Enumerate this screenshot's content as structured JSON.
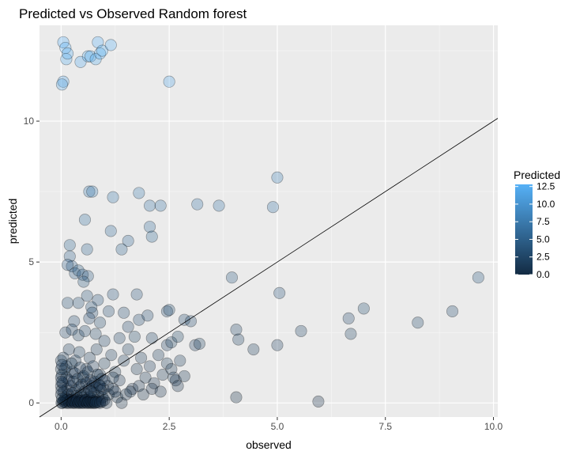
{
  "chart_data": {
    "type": "scatter",
    "title": "Predicted vs Observed Random forest",
    "xlabel": "observed",
    "ylabel": "predicted",
    "xlim": [
      -0.5,
      10.1
    ],
    "ylim": [
      -0.5,
      13.4
    ],
    "x_ticks": [
      0,
      2.5,
      5,
      7.5,
      10
    ],
    "x_tick_labels": [
      "0.0",
      "2.5",
      "5.0",
      "7.5",
      "10.0"
    ],
    "y_ticks": [
      0,
      5,
      10
    ],
    "y_tick_labels": [
      "0",
      "5",
      "10"
    ],
    "grid": true,
    "reference_line": {
      "slope": 1,
      "intercept": 0
    },
    "color_scale": {
      "title": "Predicted",
      "low": "#132B43",
      "high": "#56B1F7",
      "domain": [
        0,
        12.8
      ],
      "ticks": [
        0,
        2.5,
        5,
        7.5,
        10,
        12.5
      ],
      "tick_labels": [
        "0.0",
        "2.5",
        "5.0",
        "7.5",
        "10.0",
        "12.5"
      ]
    },
    "legend_placement": "right",
    "series": [
      {
        "points": [
          [
            0.05,
            12.8
          ],
          [
            0.1,
            12.6
          ],
          [
            0.12,
            12.2
          ],
          [
            0.15,
            12.4
          ],
          [
            0.05,
            11.4
          ],
          [
            0.02,
            11.3
          ],
          [
            0.45,
            12.1
          ],
          [
            0.62,
            12.3
          ],
          [
            0.68,
            12.3
          ],
          [
            0.8,
            12.2
          ],
          [
            0.85,
            12.8
          ],
          [
            0.9,
            12.4
          ],
          [
            0.95,
            12.5
          ],
          [
            1.15,
            12.7
          ],
          [
            2.5,
            11.4
          ],
          [
            0.65,
            7.5
          ],
          [
            0.72,
            7.5
          ],
          [
            1.2,
            7.3
          ],
          [
            1.8,
            7.45
          ],
          [
            2.05,
            7.0
          ],
          [
            2.3,
            7.0
          ],
          [
            3.15,
            7.05
          ],
          [
            3.65,
            7.0
          ],
          [
            4.9,
            6.95
          ],
          [
            5.0,
            8.0
          ],
          [
            0.55,
            6.5
          ],
          [
            1.15,
            6.1
          ],
          [
            2.05,
            6.25
          ],
          [
            2.1,
            5.9
          ],
          [
            1.55,
            5.75
          ],
          [
            1.4,
            5.45
          ],
          [
            0.2,
            5.6
          ],
          [
            0.6,
            5.45
          ],
          [
            0.2,
            5.2
          ],
          [
            0.25,
            4.85
          ],
          [
            0.15,
            4.9
          ],
          [
            0.32,
            4.6
          ],
          [
            0.4,
            4.7
          ],
          [
            0.5,
            4.55
          ],
          [
            0.62,
            4.5
          ],
          [
            0.52,
            4.3
          ],
          [
            3.95,
            4.45
          ],
          [
            9.65,
            4.45
          ],
          [
            0.6,
            3.8
          ],
          [
            0.85,
            3.65
          ],
          [
            1.2,
            3.85
          ],
          [
            1.75,
            3.85
          ],
          [
            0.15,
            3.55
          ],
          [
            0.4,
            3.55
          ],
          [
            0.7,
            3.4
          ],
          [
            0.72,
            3.2
          ],
          [
            1.1,
            3.25
          ],
          [
            1.45,
            3.2
          ],
          [
            2.45,
            3.25
          ],
          [
            2.5,
            3.3
          ],
          [
            5.05,
            3.9
          ],
          [
            7.0,
            3.35
          ],
          [
            9.05,
            3.25
          ],
          [
            0.3,
            2.9
          ],
          [
            0.65,
            3.0
          ],
          [
            0.9,
            2.85
          ],
          [
            1.55,
            2.7
          ],
          [
            1.8,
            2.95
          ],
          [
            2.0,
            3.1
          ],
          [
            2.85,
            2.95
          ],
          [
            3.0,
            2.9
          ],
          [
            4.05,
            2.6
          ],
          [
            4.1,
            2.25
          ],
          [
            4.45,
            1.9
          ],
          [
            5.0,
            2.05
          ],
          [
            5.55,
            2.55
          ],
          [
            6.65,
            3.0
          ],
          [
            6.7,
            2.45
          ],
          [
            8.25,
            2.85
          ],
          [
            0.1,
            2.5
          ],
          [
            0.25,
            2.6
          ],
          [
            0.4,
            2.4
          ],
          [
            0.55,
            2.55
          ],
          [
            0.8,
            2.45
          ],
          [
            1.0,
            2.2
          ],
          [
            1.35,
            2.3
          ],
          [
            1.7,
            2.35
          ],
          [
            2.1,
            2.3
          ],
          [
            2.45,
            2.05
          ],
          [
            2.55,
            2.15
          ],
          [
            2.7,
            2.35
          ],
          [
            3.1,
            2.05
          ],
          [
            3.2,
            2.1
          ],
          [
            0.05,
            1.6
          ],
          [
            0.12,
            1.3
          ],
          [
            0.18,
            1.9
          ],
          [
            0.26,
            1.1
          ],
          [
            0.33,
            1.5
          ],
          [
            0.42,
            1.8
          ],
          [
            0.5,
            0.9
          ],
          [
            0.58,
            1.2
          ],
          [
            0.66,
            1.6
          ],
          [
            0.74,
            0.7
          ],
          [
            0.82,
            1.9
          ],
          [
            0.9,
            1.0
          ],
          [
            1.0,
            1.4
          ],
          [
            1.08,
            0.6
          ],
          [
            1.16,
            1.7
          ],
          [
            1.25,
            1.1
          ],
          [
            1.35,
            0.8
          ],
          [
            1.45,
            1.5
          ],
          [
            1.55,
            1.9
          ],
          [
            1.65,
            0.5
          ],
          [
            1.75,
            1.2
          ],
          [
            1.85,
            1.6
          ],
          [
            1.95,
            0.9
          ],
          [
            2.05,
            1.3
          ],
          [
            2.15,
            0.7
          ],
          [
            2.25,
            1.7
          ],
          [
            2.35,
            1.0
          ],
          [
            2.45,
            1.4
          ],
          [
            2.55,
            1.2
          ],
          [
            2.65,
            0.8
          ],
          [
            2.75,
            1.5
          ],
          [
            2.85,
            0.95
          ],
          [
            0.02,
            1.0
          ],
          [
            0.04,
            0.7
          ],
          [
            0.06,
            0.4
          ],
          [
            0.08,
            1.2
          ],
          [
            0.1,
            0.2
          ],
          [
            0.12,
            0.9
          ],
          [
            0.14,
            0.5
          ],
          [
            0.16,
            0.3
          ],
          [
            0.18,
            0.8
          ],
          [
            0.2,
            0.1
          ],
          [
            0.22,
            0.6
          ],
          [
            0.24,
            1.4
          ],
          [
            0.26,
            0.35
          ],
          [
            0.28,
            0.75
          ],
          [
            0.3,
            0.15
          ],
          [
            0.32,
            1.05
          ],
          [
            0.34,
            0.45
          ],
          [
            0.36,
            0.25
          ],
          [
            0.38,
            0.85
          ],
          [
            0.4,
            0.05
          ],
          [
            0.42,
            0.55
          ],
          [
            0.44,
            1.25
          ],
          [
            0.46,
            0.3
          ],
          [
            0.48,
            0.65
          ],
          [
            0.5,
            0.2
          ],
          [
            0.52,
            0.95
          ],
          [
            0.54,
            0.4
          ],
          [
            0.56,
            0.1
          ],
          [
            0.58,
            0.7
          ],
          [
            0.6,
            0.3
          ],
          [
            0.62,
            1.1
          ],
          [
            0.64,
            0.5
          ],
          [
            0.66,
            0.2
          ],
          [
            0.68,
            0.8
          ],
          [
            0.7,
            0.15
          ],
          [
            0.72,
            0.6
          ],
          [
            0.74,
            1.3
          ],
          [
            0.76,
            0.35
          ],
          [
            0.78,
            0.75
          ],
          [
            0.8,
            0.1
          ],
          [
            0.82,
            0.55
          ],
          [
            0.84,
            1.0
          ],
          [
            0.86,
            0.25
          ],
          [
            0.88,
            0.65
          ],
          [
            0.9,
            0.05
          ],
          [
            0.92,
            0.45
          ],
          [
            0.94,
            0.85
          ],
          [
            0.96,
            0.2
          ],
          [
            0.98,
            0.5
          ],
          [
            1.0,
            0.1
          ],
          [
            0.03,
            0.0
          ],
          [
            0.05,
            0.05
          ],
          [
            0.07,
            0.1
          ],
          [
            0.09,
            0.02
          ],
          [
            0.11,
            0.08
          ],
          [
            0.13,
            0.0
          ],
          [
            0.15,
            0.12
          ],
          [
            0.17,
            0.04
          ],
          [
            0.19,
            0.0
          ],
          [
            0.21,
            0.06
          ],
          [
            0.23,
            0.1
          ],
          [
            0.25,
            0.02
          ],
          [
            0.27,
            0.0
          ],
          [
            0.29,
            0.08
          ],
          [
            0.31,
            0.03
          ],
          [
            0.33,
            0.0
          ],
          [
            0.35,
            0.05
          ],
          [
            0.37,
            0.11
          ],
          [
            0.39,
            0.01
          ],
          [
            0.41,
            0.0
          ],
          [
            0.43,
            0.07
          ],
          [
            0.45,
            0.03
          ],
          [
            0.47,
            0.0
          ],
          [
            0.49,
            0.09
          ],
          [
            0.51,
            0.02
          ],
          [
            0.53,
            0.0
          ],
          [
            0.55,
            0.06
          ],
          [
            0.57,
            0.1
          ],
          [
            0.59,
            0.01
          ],
          [
            0.61,
            0.0
          ],
          [
            0.63,
            0.05
          ],
          [
            0.65,
            0.03
          ],
          [
            0.67,
            0.0
          ],
          [
            0.69,
            0.08
          ],
          [
            0.71,
            0.02
          ],
          [
            0.73,
            0.0
          ],
          [
            0.75,
            0.06
          ],
          [
            0.77,
            0.01
          ],
          [
            0.79,
            0.0
          ],
          [
            0.81,
            0.04
          ],
          [
            0.85,
            0.02
          ],
          [
            0.9,
            0.0
          ],
          [
            0.95,
            0.05
          ],
          [
            1.05,
            0.0
          ],
          [
            1.1,
            0.3
          ],
          [
            1.2,
            0.5
          ],
          [
            1.3,
            0.2
          ],
          [
            1.4,
            0.0
          ],
          [
            0.0,
            0.3
          ],
          [
            0.0,
            0.6
          ],
          [
            0.0,
            0.9
          ],
          [
            0.0,
            1.2
          ],
          [
            0.0,
            1.5
          ],
          [
            0.01,
            0.0
          ],
          [
            0.01,
            0.45
          ],
          [
            0.01,
            0.75
          ],
          [
            0.02,
            1.35
          ],
          [
            0.02,
            0.15
          ],
          [
            1.5,
            0.3
          ],
          [
            1.6,
            0.4
          ],
          [
            1.8,
            0.6
          ],
          [
            1.9,
            0.3
          ],
          [
            2.1,
            0.5
          ],
          [
            2.3,
            0.4
          ],
          [
            2.6,
            0.9
          ],
          [
            2.7,
            0.6
          ],
          [
            4.05,
            0.2
          ],
          [
            5.95,
            0.05
          ],
          [
            1.0,
            0.8
          ],
          [
            1.2,
            0.9
          ],
          [
            1.25,
            0.4
          ],
          [
            0.9,
            0.6
          ],
          [
            0.7,
            0.4
          ]
        ]
      }
    ]
  }
}
